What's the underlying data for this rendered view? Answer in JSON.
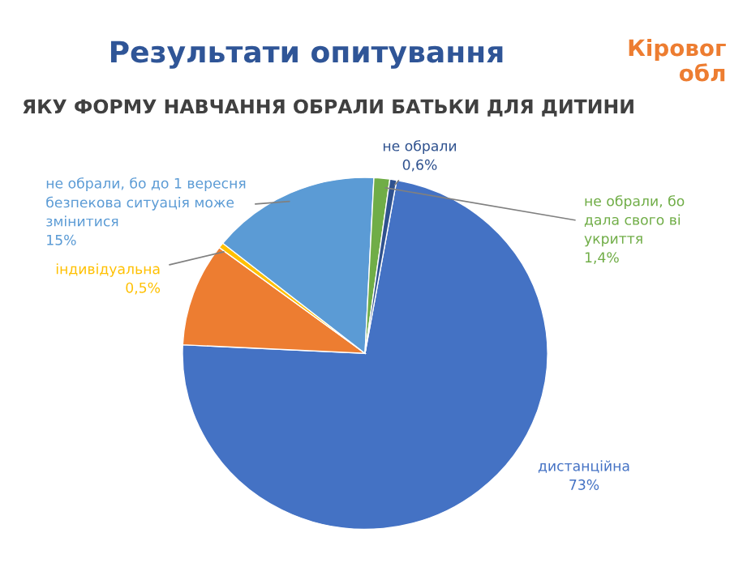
{
  "chart_data": {
    "type": "pie",
    "title": "Результати опитування",
    "subtitle": "ЯКУ ФОРМУ НАВЧАННЯ ОБРАЛИ БАТЬКИ ДЛЯ ДИТИНИ",
    "annotations": [
      "Кіровог\nобл"
    ],
    "categories": [
      "дистанційна",
      null,
      "індивідуальна",
      "не обрали, бо до 1 вересня\nбезпекова ситуація може\nзмінитися",
      "не обрали, бо\nдала свого ві\nукриття",
      "не обрали"
    ],
    "values": [
      73,
      9.5,
      0.5,
      15,
      1.4,
      0.6
    ],
    "colors": [
      "#4472c4",
      "#ed7d31",
      "#ffc000",
      "#5b9bd5",
      "#70ad47",
      "#2f528f"
    ],
    "value_labels": [
      "73%",
      null,
      "0,5%",
      "15%",
      "1,4%",
      "0,6%"
    ]
  }
}
